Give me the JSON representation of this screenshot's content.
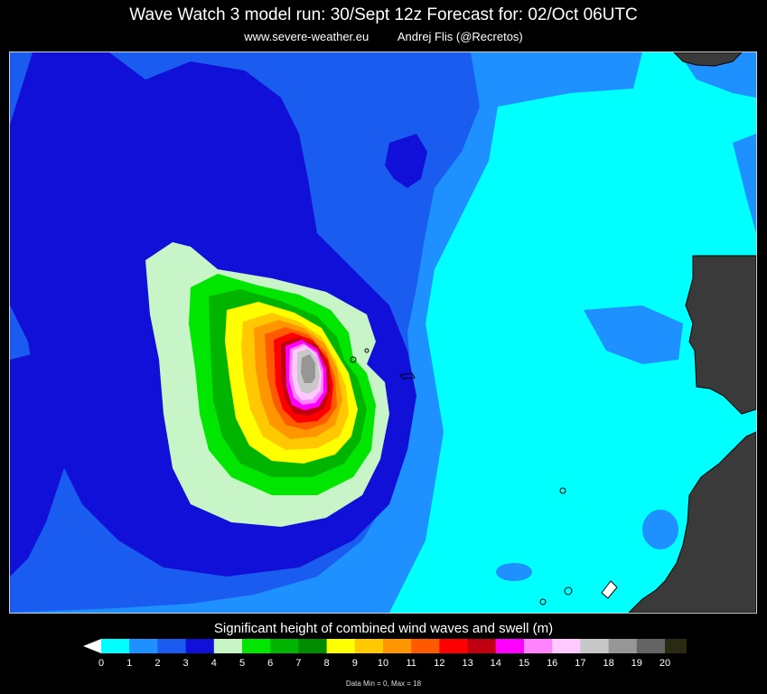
{
  "header": {
    "title": "Wave Watch 3 model run: 30/Sept 12z  Forecast for: 02/Oct 06UTC",
    "website": "www.severe-weather.eu",
    "author": "Andrej Flis (@Recretos)"
  },
  "legend": {
    "title": "Significant height of combined wind waves and swell (m)",
    "ticks": [
      "0",
      "1",
      "2",
      "3",
      "4",
      "5",
      "6",
      "7",
      "8",
      "9",
      "10",
      "11",
      "12",
      "13",
      "14",
      "15",
      "16",
      "17",
      "18",
      "19",
      "20"
    ],
    "colors": [
      "#ffffff",
      "#00ffff",
      "#1e90ff",
      "#1a5cf0",
      "#1010d8",
      "#c8f5c8",
      "#00e600",
      "#00b400",
      "#008c00",
      "#ffff00",
      "#ffc800",
      "#ff9600",
      "#ff5a00",
      "#ff0000",
      "#c00010",
      "#ff00ff",
      "#ff82ff",
      "#ffc8ff",
      "#c8c8c8",
      "#969696",
      "#646464",
      "#2a2a12"
    ],
    "stats": "Data Min = 0, Max = 18"
  },
  "map_colors": {
    "land": "#3a3a3a",
    "coast": "#000000"
  }
}
